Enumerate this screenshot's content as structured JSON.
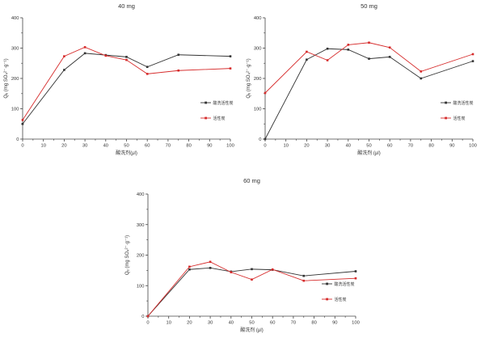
{
  "figure": {
    "background": "#ffffff",
    "text_color": "#333333",
    "axis_color": "#444444"
  },
  "chart_data": [
    {
      "type": "line",
      "title": "40 mg",
      "xlabel": "酸洗剂(μl)",
      "ylabel": "Qₑ (mg SO₄²⁻·g⁻¹)",
      "x": [
        0,
        20,
        30,
        40,
        50,
        60,
        75,
        100
      ],
      "xlim": [
        0,
        100
      ],
      "ylim": [
        0,
        400
      ],
      "xticks": [
        0,
        10,
        20,
        30,
        40,
        50,
        60,
        70,
        80,
        90,
        100
      ],
      "yticks": [
        0,
        100,
        200,
        300,
        400
      ],
      "grid": false,
      "legend_position": "inside-right",
      "series": [
        {
          "name": "酸洗活性炭",
          "color": "#333333",
          "marker": "square",
          "values": [
            50,
            228,
            283,
            277,
            271,
            238,
            278,
            273
          ]
        },
        {
          "name": "活性炭",
          "color": "#d62b2b",
          "marker": "square",
          "values": [
            63,
            273,
            303,
            275,
            261,
            215,
            226,
            233
          ]
        }
      ]
    },
    {
      "type": "line",
      "title": "50 mg",
      "xlabel": "酸洗剂 (μl)",
      "ylabel": "Qₑ (mg SO₄²⁻·g⁻¹)",
      "x": [
        0,
        20,
        30,
        40,
        50,
        60,
        75,
        100
      ],
      "xlim": [
        0,
        100
      ],
      "ylim": [
        0,
        400
      ],
      "xticks": [
        0,
        10,
        20,
        30,
        40,
        50,
        60,
        70,
        80,
        90,
        100
      ],
      "yticks": [
        0,
        100,
        200,
        300,
        400
      ],
      "grid": false,
      "legend_position": "inside-right",
      "series": [
        {
          "name": "酸洗活性炭",
          "color": "#333333",
          "marker": "square",
          "values": [
            0,
            262,
            298,
            295,
            265,
            271,
            200,
            257
          ]
        },
        {
          "name": "活性炭",
          "color": "#d62b2b",
          "marker": "square",
          "values": [
            152,
            288,
            260,
            311,
            318,
            302,
            223,
            280
          ]
        }
      ]
    },
    {
      "type": "line",
      "title": "60 mg",
      "xlabel": "酸洗剂 (μl)",
      "ylabel": "Qₑ (mg SO₄²⁻·g⁻¹)",
      "x": [
        0,
        20,
        30,
        40,
        50,
        60,
        75,
        100
      ],
      "xlim": [
        0,
        100
      ],
      "ylim": [
        0,
        400
      ],
      "xticks": [
        0,
        10,
        20,
        30,
        40,
        50,
        60,
        70,
        80,
        90,
        100
      ],
      "yticks": [
        0,
        100,
        200,
        300,
        400
      ],
      "grid": false,
      "legend_position": "inside-right",
      "series": [
        {
          "name": "酸洗活性炭",
          "color": "#333333",
          "marker": "square",
          "values": [
            0,
            153,
            158,
            146,
            154,
            152,
            132,
            147
          ]
        },
        {
          "name": "活性炭",
          "color": "#d62b2b",
          "marker": "square",
          "values": [
            0,
            162,
            178,
            144,
            120,
            153,
            116,
            124
          ]
        }
      ]
    }
  ]
}
